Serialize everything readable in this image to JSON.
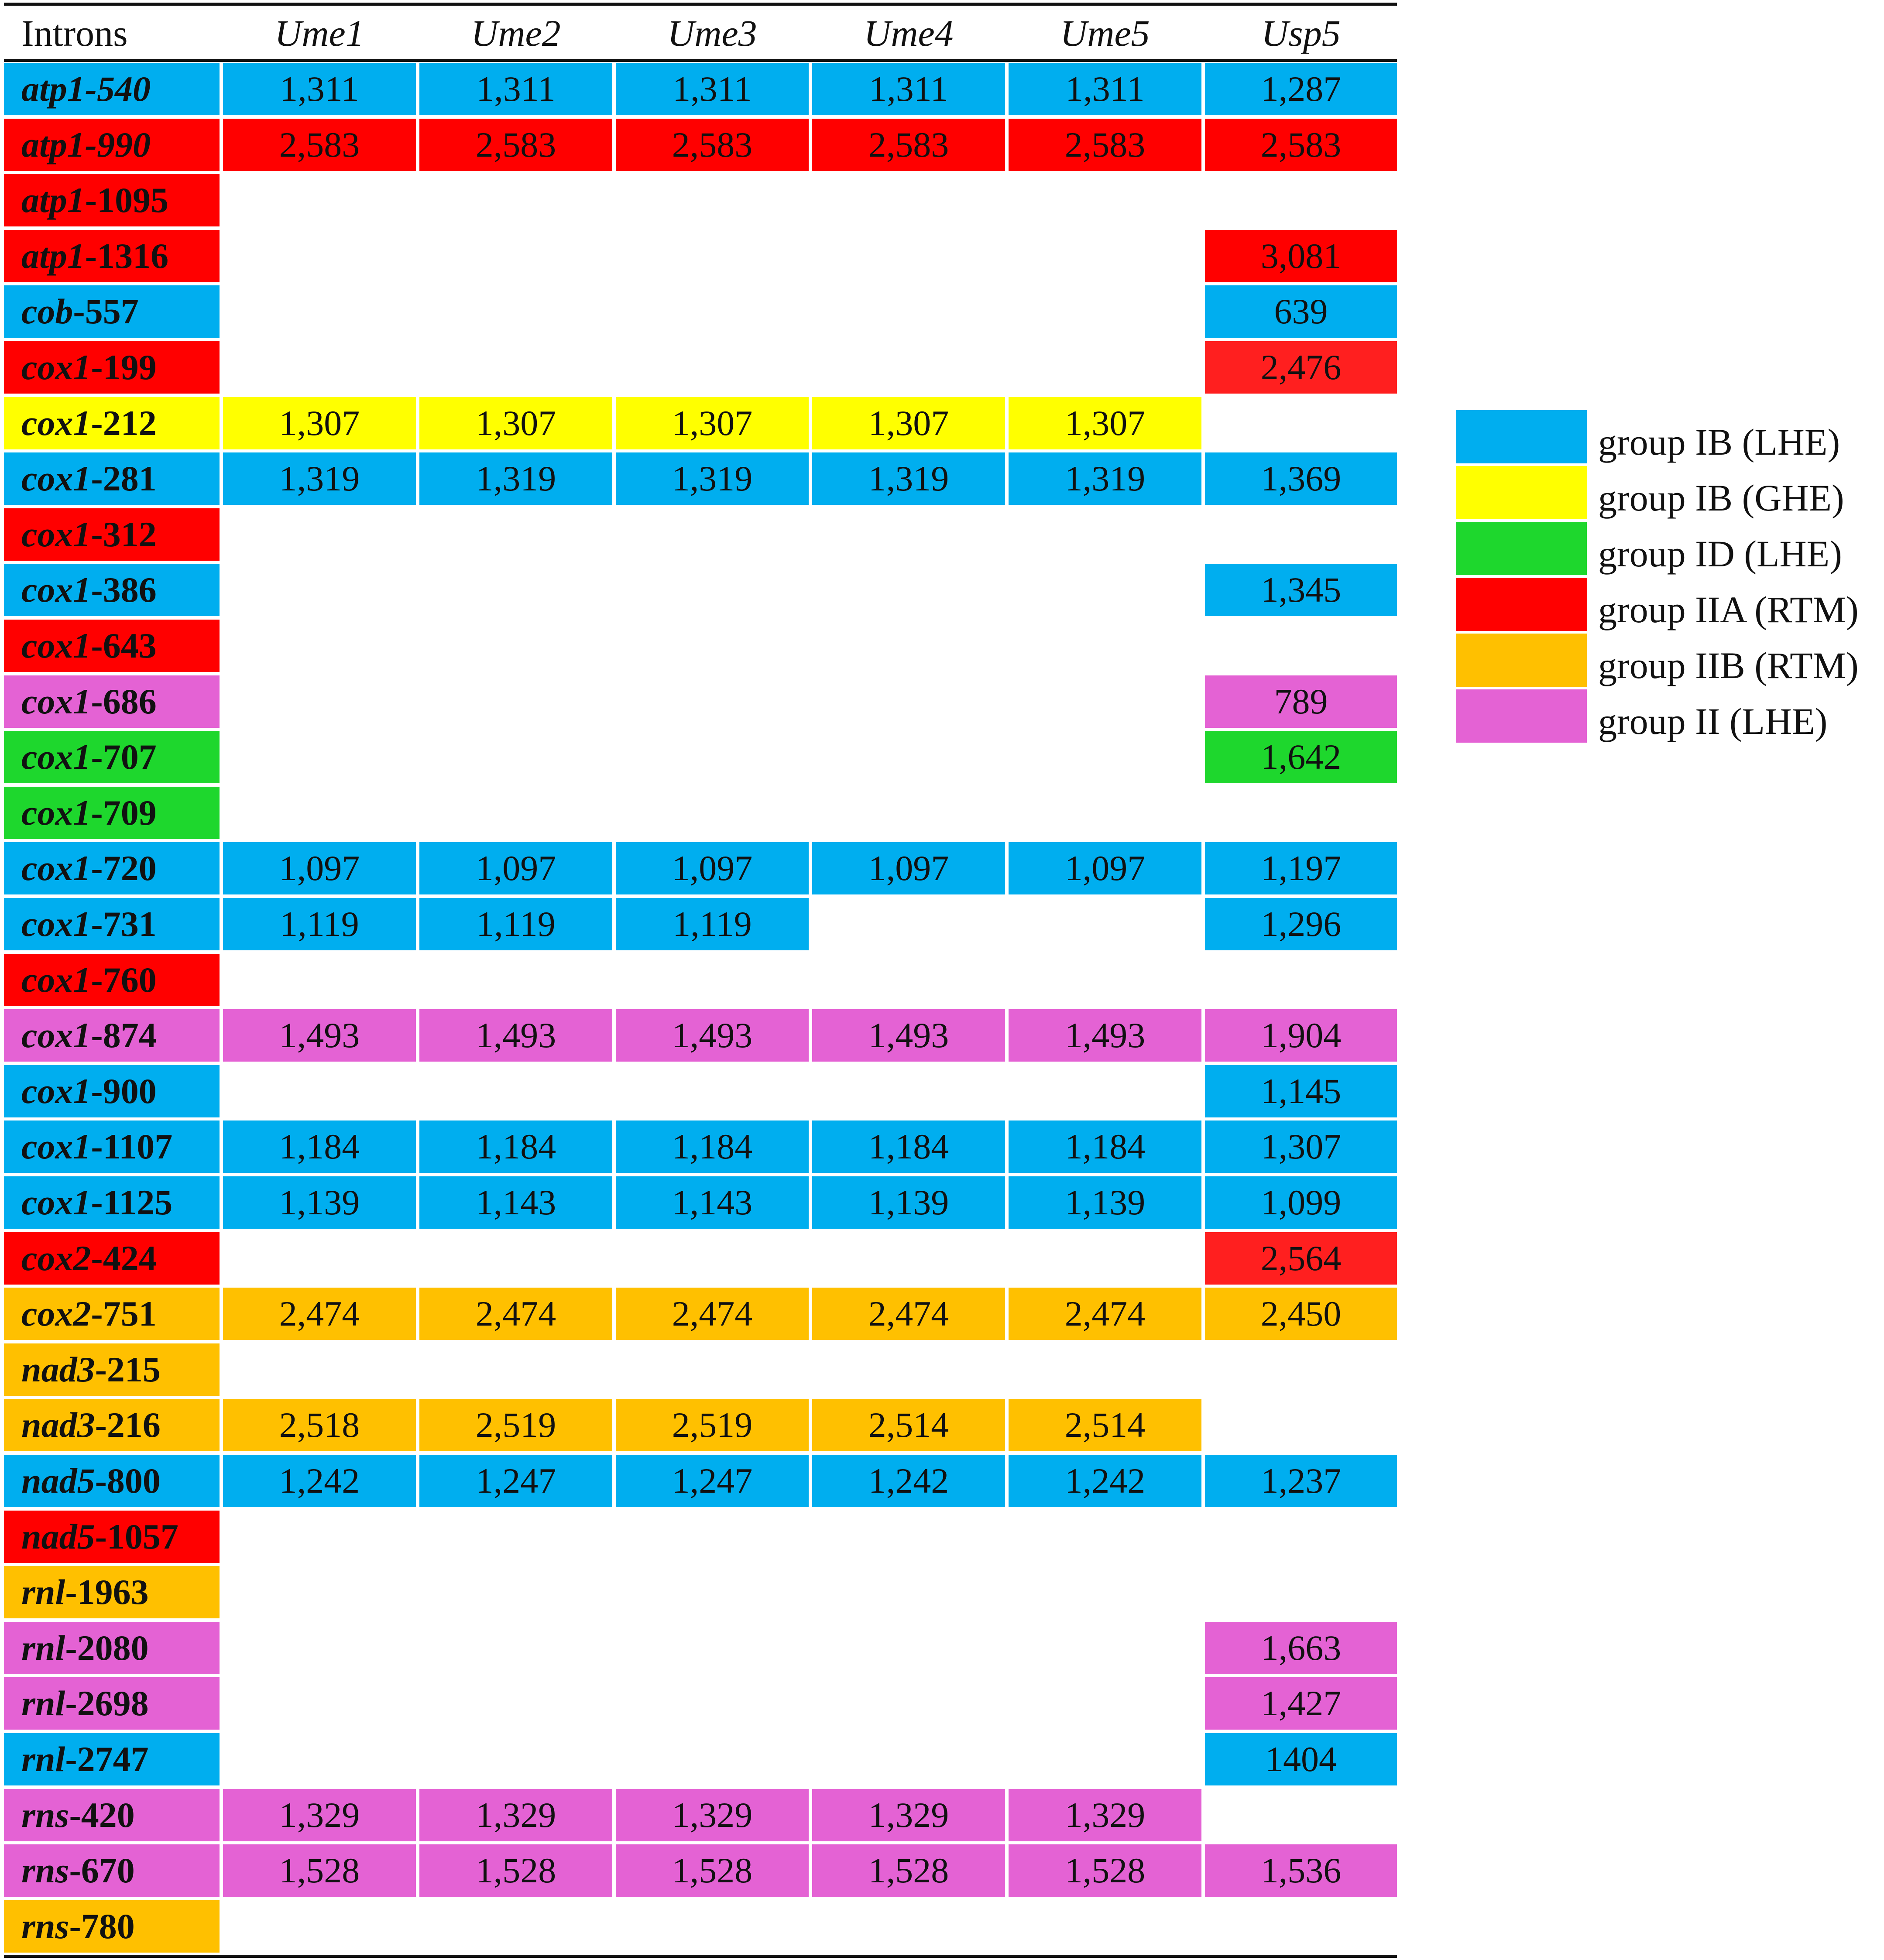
{
  "colors": {
    "IB_LHE": "#00aeef",
    "IB_GHE": "#ffff00",
    "ID_LHE": "#1ed72d",
    "IIA_RTM": "#ff0000",
    "IIA_RTM_alt": "#ff1f1f",
    "IIB_RTM": "#ffc000",
    "II_LHE": "#e462d4"
  },
  "table": {
    "headers": [
      "Introns",
      "Ume1",
      "Ume2",
      "Ume3",
      "Ume4",
      "Ume5",
      "Usp5"
    ],
    "rows": [
      {
        "gene": "atp1",
        "suffix": "-540",
        "suffix_italic": true,
        "color": "IB_LHE",
        "values": [
          "1,311",
          "1,311",
          "1,311",
          "1,311",
          "1,311",
          "1,287"
        ]
      },
      {
        "gene": "atp1",
        "suffix": "-990",
        "suffix_italic": true,
        "color": "IIA_RTM",
        "values": [
          "2,583",
          "2,583",
          "2,583",
          "2,583",
          "2,583",
          "2,583"
        ]
      },
      {
        "gene": "atp1",
        "suffix": "-1095",
        "suffix_italic": false,
        "color": "IIA_RTM",
        "values": [
          "",
          "",
          "",
          "",
          "",
          ""
        ]
      },
      {
        "gene": "atp1",
        "suffix": "-1316",
        "suffix_italic": false,
        "color": "IIA_RTM",
        "values": [
          "",
          "",
          "",
          "",
          "",
          "3,081"
        ]
      },
      {
        "gene": "cob",
        "suffix": "-557",
        "suffix_italic": false,
        "color": "IB_LHE",
        "values": [
          "",
          "",
          "",
          "",
          "",
          "639"
        ]
      },
      {
        "gene": "cox1",
        "suffix": "-199",
        "suffix_italic": false,
        "color": "IIA_RTM",
        "usp5_color": "IIA_RTM_alt",
        "values": [
          "",
          "",
          "",
          "",
          "",
          "2,476"
        ]
      },
      {
        "gene": "cox1",
        "suffix": "-212",
        "suffix_italic": false,
        "color": "IB_GHE",
        "values": [
          "1,307",
          "1,307",
          "1,307",
          "1,307",
          "1,307",
          ""
        ]
      },
      {
        "gene": "cox1",
        "suffix": "-281",
        "suffix_italic": false,
        "color": "IB_LHE",
        "values": [
          "1,319",
          "1,319",
          "1,319",
          "1,319",
          "1,319",
          "1,369"
        ]
      },
      {
        "gene": "cox1",
        "suffix": "-312",
        "suffix_italic": false,
        "color": "IIA_RTM",
        "values": [
          "",
          "",
          "",
          "",
          "",
          ""
        ]
      },
      {
        "gene": "cox1",
        "suffix": "-386",
        "suffix_italic": false,
        "color": "IB_LHE",
        "values": [
          "",
          "",
          "",
          "",
          "",
          "1,345"
        ]
      },
      {
        "gene": "cox1",
        "suffix": "-643",
        "suffix_italic": false,
        "color": "IIA_RTM",
        "values": [
          "",
          "",
          "",
          "",
          "",
          ""
        ]
      },
      {
        "gene": "cox1",
        "suffix": "-686",
        "suffix_italic": false,
        "color": "II_LHE",
        "values": [
          "",
          "",
          "",
          "",
          "",
          "789"
        ]
      },
      {
        "gene": "cox1",
        "suffix": "-707",
        "suffix_italic": false,
        "color": "ID_LHE",
        "values": [
          "",
          "",
          "",
          "",
          "",
          "1,642"
        ]
      },
      {
        "gene": "cox1",
        "suffix": "-709",
        "suffix_italic": false,
        "color": "ID_LHE",
        "values": [
          "",
          "",
          "",
          "",
          "",
          ""
        ]
      },
      {
        "gene": "cox1",
        "suffix": "-720",
        "suffix_italic": false,
        "color": "IB_LHE",
        "values": [
          "1,097",
          "1,097",
          "1,097",
          "1,097",
          "1,097",
          "1,197"
        ]
      },
      {
        "gene": "cox1",
        "suffix": "-731",
        "suffix_italic": false,
        "color": "IB_LHE",
        "values": [
          "1,119",
          "1,119",
          "1,119",
          "",
          "",
          "1,296"
        ]
      },
      {
        "gene": "cox1",
        "suffix": "-760",
        "suffix_italic": false,
        "color": "IIA_RTM",
        "values": [
          "",
          "",
          "",
          "",
          "",
          ""
        ]
      },
      {
        "gene": "cox1",
        "suffix": "-874",
        "suffix_italic": false,
        "color": "II_LHE",
        "values": [
          "1,493",
          "1,493",
          "1,493",
          "1,493",
          "1,493",
          "1,904"
        ]
      },
      {
        "gene": "cox1",
        "suffix": "-900",
        "suffix_italic": false,
        "color": "IB_LHE",
        "values": [
          "",
          "",
          "",
          "",
          "",
          "1,145"
        ]
      },
      {
        "gene": "cox1",
        "suffix": "-1107",
        "suffix_italic": false,
        "color": "IB_LHE",
        "values": [
          "1,184",
          "1,184",
          "1,184",
          "1,184",
          "1,184",
          "1,307"
        ]
      },
      {
        "gene": "cox1",
        "suffix": "-1125",
        "suffix_italic": false,
        "color": "IB_LHE",
        "values": [
          "1,139",
          "1,143",
          "1,143",
          "1,139",
          "1,139",
          "1,099"
        ]
      },
      {
        "gene": "cox2",
        "suffix": "-424",
        "suffix_italic": false,
        "color": "IIA_RTM",
        "usp5_color": "IIA_RTM_alt",
        "values": [
          "",
          "",
          "",
          "",
          "",
          "2,564"
        ]
      },
      {
        "gene": "cox2",
        "suffix": "-751",
        "suffix_italic": false,
        "color": "IIB_RTM",
        "values": [
          "2,474",
          "2,474",
          "2,474",
          "2,474",
          "2,474",
          "2,450"
        ]
      },
      {
        "gene": "nad3",
        "suffix": "-215",
        "suffix_italic": false,
        "color": "IIB_RTM",
        "values": [
          "",
          "",
          "",
          "",
          "",
          ""
        ]
      },
      {
        "gene": "nad3",
        "suffix": "-216",
        "suffix_italic": false,
        "color": "IIB_RTM",
        "values": [
          "2,518",
          "2,519",
          "2,519",
          "2,514",
          "2,514",
          ""
        ]
      },
      {
        "gene": "nad5",
        "suffix": "-800",
        "suffix_italic": false,
        "color": "IB_LHE",
        "values": [
          "1,242",
          "1,247",
          "1,247",
          "1,242",
          "1,242",
          "1,237"
        ]
      },
      {
        "gene": "nad5",
        "suffix": "-1057",
        "suffix_italic": false,
        "color": "IIA_RTM",
        "values": [
          "",
          "",
          "",
          "",
          "",
          ""
        ]
      },
      {
        "gene": "rnl",
        "suffix": "-1963",
        "suffix_italic": false,
        "color": "IIB_RTM",
        "values": [
          "",
          "",
          "",
          "",
          "",
          ""
        ]
      },
      {
        "gene": "rnl",
        "suffix": "-2080",
        "suffix_italic": false,
        "color": "II_LHE",
        "values": [
          "",
          "",
          "",
          "",
          "",
          "1,663"
        ]
      },
      {
        "gene": "rnl",
        "suffix": "-2698",
        "suffix_italic": false,
        "color": "II_LHE",
        "values": [
          "",
          "",
          "",
          "",
          "",
          "1,427"
        ]
      },
      {
        "gene": "rnl",
        "suffix": "-2747",
        "suffix_italic": false,
        "color": "IB_LHE",
        "values": [
          "",
          "",
          "",
          "",
          "",
          "1404"
        ]
      },
      {
        "gene": "rns",
        "suffix": "-420",
        "suffix_italic": false,
        "color": "II_LHE",
        "values": [
          "1,329",
          "1,329",
          "1,329",
          "1,329",
          "1,329",
          ""
        ]
      },
      {
        "gene": "rns",
        "suffix": "-670",
        "suffix_italic": false,
        "color": "II_LHE",
        "values": [
          "1,528",
          "1,528",
          "1,528",
          "1,528",
          "1,528",
          "1,536"
        ]
      },
      {
        "gene": "rns",
        "suffix": "-780",
        "suffix_italic": false,
        "color": "IIB_RTM",
        "values": [
          "",
          "",
          "",
          "",
          "",
          ""
        ]
      }
    ]
  },
  "legend": [
    {
      "key": "IB_LHE",
      "label": "group IB (LHE)"
    },
    {
      "key": "IB_GHE",
      "label": "group IB (GHE)"
    },
    {
      "key": "ID_LHE",
      "label": "group ID (LHE)"
    },
    {
      "key": "IIA_RTM",
      "label": "group IIA (RTM)"
    },
    {
      "key": "IIB_RTM",
      "label": "group IIB (RTM)"
    },
    {
      "key": "II_LHE",
      "label": "group II (LHE)"
    }
  ]
}
